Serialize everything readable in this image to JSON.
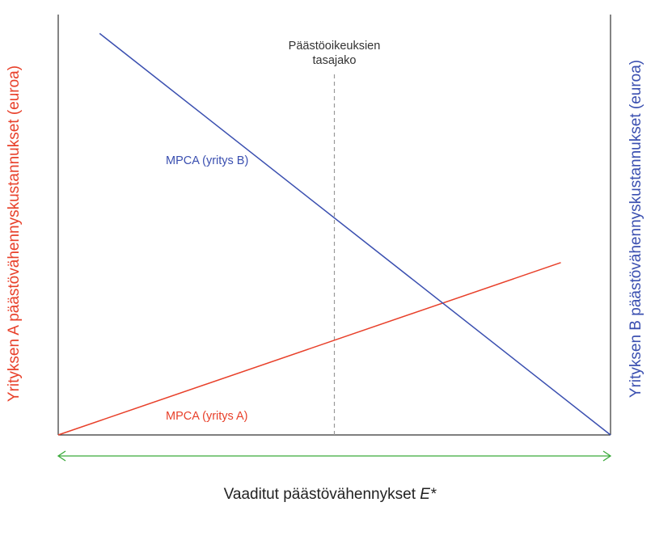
{
  "chart_data": {
    "type": "line",
    "title": "",
    "xlabel_prefix": "Vaaditut päästövähennykset ",
    "xlabel_var": "E*",
    "ylabel_left": "Yrityksen A päästövähennyskustannukset (euroa)",
    "ylabel_right": "Yrityksen B päästövähennyskustannukset (euroa)",
    "xlim": [
      0,
      100
    ],
    "ylim": [
      0,
      100
    ],
    "grid": false,
    "series": [
      {
        "name": "MPCA (yritys A)",
        "color": "#e8402a",
        "axis": "left",
        "x": [
          0,
          91
        ],
        "y": [
          0,
          41
        ]
      },
      {
        "name": "MPCA (yritys B)",
        "color": "#3a4fb0",
        "axis": "right",
        "x": [
          7.5,
          100
        ],
        "y": [
          95.5,
          0
        ]
      }
    ],
    "annotations": [
      {
        "text_lines": [
          "Päästöoikeuksien",
          "tasajako"
        ],
        "x": 50,
        "style": "dashed-vertical",
        "color": "#999999"
      }
    ],
    "double_arrow_color": "#3aaa3a"
  },
  "colors": {
    "axis": "#333333",
    "firm_a": "#e8402a",
    "firm_b": "#3a4fb0",
    "arrow": "#3aaa3a",
    "dashed": "#999999"
  }
}
